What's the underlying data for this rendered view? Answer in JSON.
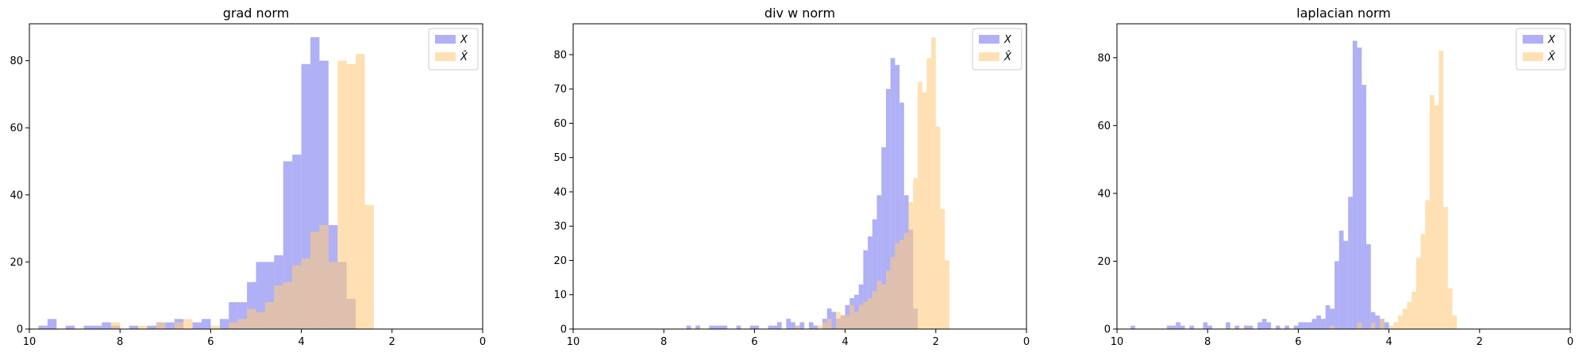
{
  "chart_data": [
    {
      "type": "bar",
      "title": "grad norm",
      "xlabel": "",
      "ylabel": "",
      "xlim": [
        10,
        0
      ],
      "ylim": [
        0,
        91
      ],
      "xticks": [
        10,
        8,
        6,
        4,
        2,
        0
      ],
      "yticks": [
        0,
        20,
        40,
        60,
        80
      ],
      "legend_position": "top-right",
      "series": [
        {
          "name": "X",
          "color": "#7b7bf0",
          "bins": [
            [
              9.8,
              9.6,
              1
            ],
            [
              9.6,
              9.4,
              3
            ],
            [
              9.2,
              9.0,
              1
            ],
            [
              8.8,
              8.6,
              1
            ],
            [
              8.6,
              8.4,
              1
            ],
            [
              8.4,
              8.2,
              2
            ],
            [
              8.2,
              8.0,
              1
            ],
            [
              7.8,
              7.6,
              1
            ],
            [
              7.4,
              7.2,
              1
            ],
            [
              7.2,
              7.0,
              2
            ],
            [
              7.0,
              6.8,
              2
            ],
            [
              6.8,
              6.6,
              3
            ],
            [
              6.4,
              6.2,
              2
            ],
            [
              6.2,
              6.0,
              3
            ],
            [
              5.8,
              5.6,
              3
            ],
            [
              5.6,
              5.4,
              8
            ],
            [
              5.4,
              5.2,
              8
            ],
            [
              5.2,
              5.0,
              14
            ],
            [
              5.0,
              4.8,
              20
            ],
            [
              4.8,
              4.6,
              20
            ],
            [
              4.6,
              4.4,
              22
            ],
            [
              4.4,
              4.2,
              50
            ],
            [
              4.2,
              4.0,
              52
            ],
            [
              4.0,
              3.8,
              79
            ],
            [
              3.8,
              3.6,
              87
            ],
            [
              3.6,
              3.4,
              80
            ],
            [
              3.4,
              3.2,
              31
            ],
            [
              3.2,
              3.0,
              20
            ],
            [
              3.0,
              2.8,
              9
            ]
          ]
        },
        {
          "name": "X̂",
          "color": "#ffcc80",
          "bins": [
            [
              8.2,
              8.0,
              2
            ],
            [
              7.6,
              7.4,
              1
            ],
            [
              7.2,
              7.0,
              2
            ],
            [
              6.8,
              6.6,
              2
            ],
            [
              6.6,
              6.4,
              3
            ],
            [
              6.0,
              5.8,
              1
            ],
            [
              5.6,
              5.4,
              2
            ],
            [
              5.4,
              5.2,
              3
            ],
            [
              5.2,
              5.0,
              6
            ],
            [
              5.0,
              4.8,
              5
            ],
            [
              4.8,
              4.6,
              8
            ],
            [
              4.6,
              4.4,
              13
            ],
            [
              4.4,
              4.2,
              14
            ],
            [
              4.2,
              4.0,
              19
            ],
            [
              4.0,
              3.8,
              21
            ],
            [
              3.8,
              3.6,
              29
            ],
            [
              3.6,
              3.4,
              31
            ],
            [
              3.4,
              3.2,
              20
            ],
            [
              3.2,
              3.0,
              80
            ],
            [
              3.0,
              2.8,
              79
            ],
            [
              2.8,
              2.6,
              82
            ],
            [
              2.6,
              2.4,
              37
            ]
          ]
        }
      ]
    },
    {
      "type": "bar",
      "title": "div w norm",
      "xlabel": "",
      "ylabel": "",
      "xlim": [
        10,
        0
      ],
      "ylim": [
        0,
        89
      ],
      "xticks": [
        10,
        8,
        6,
        4,
        2,
        0
      ],
      "yticks": [
        0,
        10,
        20,
        30,
        40,
        50,
        60,
        70,
        80
      ],
      "legend_position": "top-right",
      "series": [
        {
          "name": "X",
          "color": "#7b7bf0",
          "bins": [
            [
              7.5,
              7.4,
              1
            ],
            [
              7.3,
              7.2,
              1
            ],
            [
              7.0,
              6.6,
              1
            ],
            [
              6.4,
              6.3,
              1
            ],
            [
              6.1,
              5.9,
              1
            ],
            [
              5.7,
              5.5,
              1
            ],
            [
              5.5,
              5.4,
              2
            ],
            [
              5.3,
              5.2,
              3
            ],
            [
              5.2,
              5.1,
              2
            ],
            [
              5.1,
              5.0,
              1
            ],
            [
              5.0,
              4.9,
              2
            ],
            [
              4.8,
              4.7,
              2
            ],
            [
              4.7,
              4.6,
              1
            ],
            [
              4.5,
              4.4,
              3
            ],
            [
              4.4,
              4.3,
              6
            ],
            [
              4.3,
              4.2,
              5
            ],
            [
              4.2,
              4.1,
              3
            ],
            [
              4.1,
              4.0,
              4
            ],
            [
              4.0,
              3.9,
              7
            ],
            [
              3.9,
              3.8,
              9
            ],
            [
              3.8,
              3.7,
              10
            ],
            [
              3.7,
              3.6,
              13
            ],
            [
              3.6,
              3.5,
              23
            ],
            [
              3.5,
              3.4,
              27
            ],
            [
              3.4,
              3.3,
              32
            ],
            [
              3.3,
              3.2,
              39
            ],
            [
              3.2,
              3.1,
              53
            ],
            [
              3.1,
              3.0,
              70
            ],
            [
              3.0,
              2.9,
              79
            ],
            [
              2.9,
              2.8,
              77
            ],
            [
              2.8,
              2.7,
              66
            ],
            [
              2.7,
              2.6,
              39
            ],
            [
              2.6,
              2.5,
              29
            ],
            [
              2.5,
              2.4,
              6
            ]
          ]
        },
        {
          "name": "X̂",
          "color": "#ffcc80",
          "bins": [
            [
              5.1,
              5.0,
              1
            ],
            [
              4.6,
              4.5,
              1
            ],
            [
              4.5,
              4.4,
              2
            ],
            [
              4.4,
              4.3,
              3
            ],
            [
              4.2,
              4.1,
              5
            ],
            [
              4.1,
              4.0,
              4
            ],
            [
              4.0,
              3.9,
              4
            ],
            [
              3.9,
              3.8,
              7
            ],
            [
              3.8,
              3.7,
              5
            ],
            [
              3.7,
              3.6,
              7
            ],
            [
              3.6,
              3.5,
              8
            ],
            [
              3.5,
              3.4,
              9
            ],
            [
              3.4,
              3.3,
              11
            ],
            [
              3.3,
              3.2,
              14
            ],
            [
              3.2,
              3.1,
              13
            ],
            [
              3.1,
              3.0,
              17
            ],
            [
              3.0,
              2.9,
              21
            ],
            [
              2.9,
              2.8,
              25
            ],
            [
              2.8,
              2.7,
              26
            ],
            [
              2.7,
              2.6,
              28
            ],
            [
              2.6,
              2.5,
              37
            ],
            [
              2.5,
              2.4,
              44
            ],
            [
              2.4,
              2.3,
              72
            ],
            [
              2.3,
              2.2,
              69
            ],
            [
              2.2,
              2.1,
              79
            ],
            [
              2.1,
              2.0,
              85
            ],
            [
              2.0,
              1.9,
              59
            ],
            [
              1.9,
              1.8,
              35
            ],
            [
              1.8,
              1.7,
              20
            ]
          ]
        }
      ]
    },
    {
      "type": "bar",
      "title": "laplacian norm",
      "xlabel": "",
      "ylabel": "",
      "xlim": [
        10,
        0
      ],
      "ylim": [
        0,
        90
      ],
      "xticks": [
        10,
        8,
        6,
        4,
        2,
        0
      ],
      "yticks": [
        0,
        20,
        40,
        60,
        80
      ],
      "legend_position": "top-right",
      "series": [
        {
          "name": "X",
          "color": "#7b7bf0",
          "bins": [
            [
              9.7,
              9.6,
              1
            ],
            [
              8.9,
              8.8,
              1
            ],
            [
              8.8,
              8.7,
              1
            ],
            [
              8.7,
              8.6,
              2
            ],
            [
              8.6,
              8.5,
              1
            ],
            [
              8.4,
              8.3,
              1
            ],
            [
              8.1,
              8.0,
              2
            ],
            [
              8.0,
              7.9,
              1
            ],
            [
              7.6,
              7.5,
              2
            ],
            [
              7.4,
              7.3,
              1
            ],
            [
              7.2,
              7.1,
              1
            ],
            [
              7.1,
              7.0,
              1
            ],
            [
              6.9,
              6.8,
              2
            ],
            [
              6.8,
              6.7,
              3
            ],
            [
              6.7,
              6.6,
              2
            ],
            [
              6.5,
              6.4,
              1
            ],
            [
              6.3,
              6.2,
              1
            ],
            [
              6.1,
              6.0,
              1
            ],
            [
              6.0,
              5.9,
              2
            ],
            [
              5.9,
              5.8,
              2
            ],
            [
              5.8,
              5.7,
              2
            ],
            [
              5.7,
              5.6,
              3
            ],
            [
              5.6,
              5.5,
              4
            ],
            [
              5.5,
              5.4,
              3
            ],
            [
              5.4,
              5.3,
              7
            ],
            [
              5.3,
              5.2,
              6
            ],
            [
              5.2,
              5.1,
              20
            ],
            [
              5.1,
              5.0,
              29
            ],
            [
              5.0,
              4.9,
              26
            ],
            [
              4.9,
              4.8,
              39
            ],
            [
              4.8,
              4.7,
              85
            ],
            [
              4.7,
              4.6,
              83
            ],
            [
              4.6,
              4.5,
              72
            ],
            [
              4.5,
              4.4,
              25
            ],
            [
              4.4,
              4.3,
              5
            ],
            [
              4.3,
              4.2,
              4
            ],
            [
              4.2,
              4.1,
              3
            ],
            [
              4.1,
              4.0,
              2
            ]
          ]
        },
        {
          "name": "X̂",
          "color": "#ffcc80",
          "bins": [
            [
              5.3,
              5.2,
              1
            ],
            [
              4.7,
              4.6,
              2
            ],
            [
              4.4,
              4.3,
              2
            ],
            [
              4.2,
              4.1,
              3
            ],
            [
              4.0,
              3.9,
              1
            ],
            [
              3.9,
              3.8,
              2
            ],
            [
              3.8,
              3.7,
              4
            ],
            [
              3.7,
              3.6,
              6
            ],
            [
              3.6,
              3.5,
              8
            ],
            [
              3.5,
              3.4,
              11
            ],
            [
              3.4,
              3.3,
              21
            ],
            [
              3.3,
              3.2,
              28
            ],
            [
              3.2,
              3.1,
              38
            ],
            [
              3.1,
              3.0,
              69
            ],
            [
              3.0,
              2.9,
              66
            ],
            [
              2.9,
              2.8,
              82
            ],
            [
              2.8,
              2.7,
              36
            ],
            [
              2.7,
              2.6,
              12
            ],
            [
              2.6,
              2.5,
              4
            ]
          ]
        }
      ]
    }
  ]
}
